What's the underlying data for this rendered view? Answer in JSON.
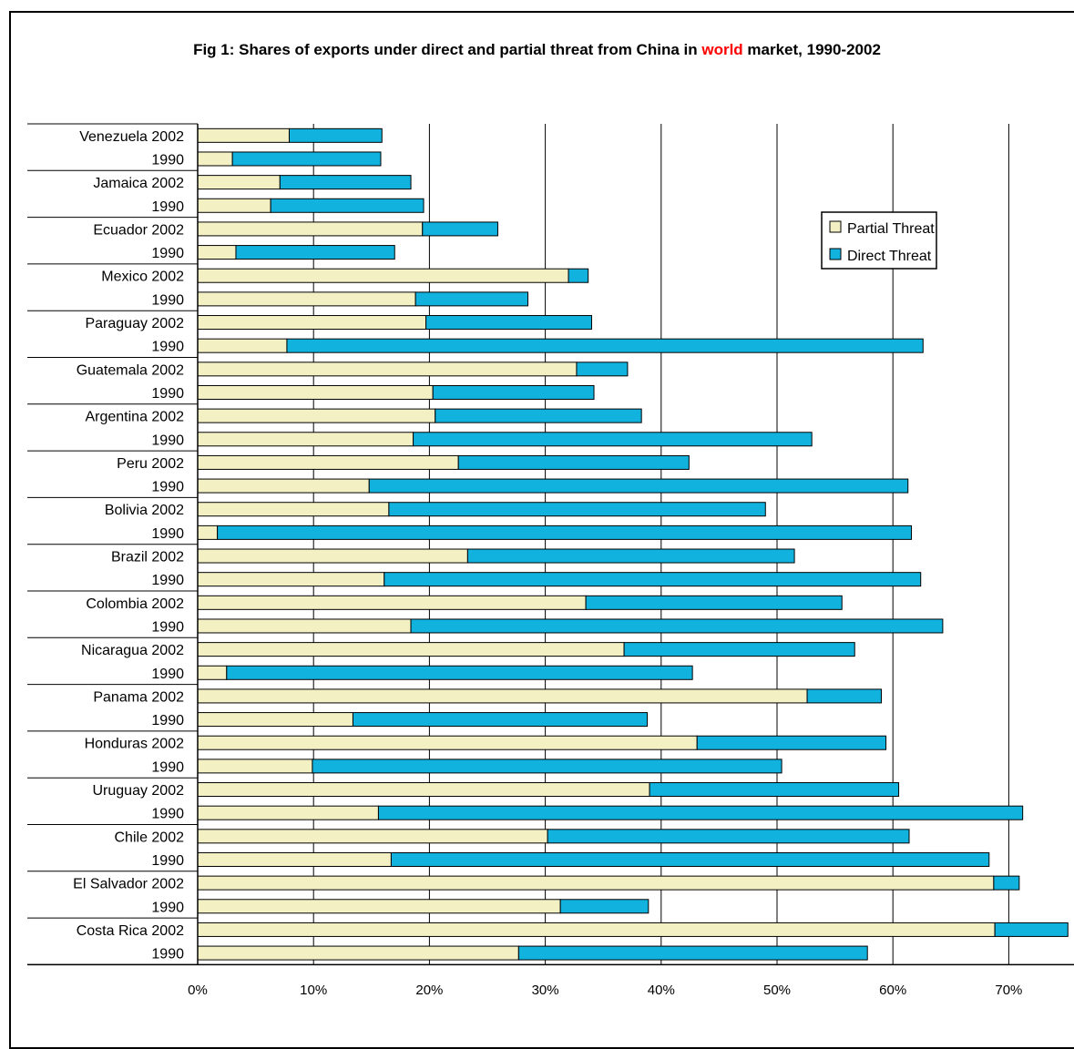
{
  "title": {
    "prefix": "Fig 1: Shares of exports under direct and partial threat from China in ",
    "highlight": "world",
    "suffix": " market, 1990-2002"
  },
  "colors": {
    "partial": "#f3f0c4",
    "direct": "#11b2de",
    "highlight": "#ff0000"
  },
  "chart_data": {
    "type": "bar",
    "orientation": "horizontal",
    "stacked": true,
    "title": "Fig 1: Shares of exports under direct and partial threat from China in world market, 1990-2002",
    "categories": [
      "Venezuela 2002",
      "1990",
      "Jamaica 2002",
      "1990",
      "Ecuador 2002",
      "1990",
      "Mexico 2002",
      "1990",
      "Paraguay 2002",
      "1990",
      "Guatemala 2002",
      "1990",
      "Argentina 2002",
      "1990",
      "Peru 2002",
      "1990",
      "Bolivia 2002",
      "1990",
      "Brazil 2002",
      "1990",
      "Colombia 2002",
      "1990",
      "Nicaragua 2002",
      "1990",
      "Panama 2002",
      "1990",
      "Honduras 2002",
      "1990",
      "Uruguay 2002",
      "1990",
      "Chile 2002",
      "1990",
      "El Salvador 2002",
      "1990",
      "Costa Rica 2002",
      "1990"
    ],
    "series": [
      {
        "name": "Partial Threat",
        "values": [
          7.9,
          3.0,
          7.1,
          6.3,
          19.4,
          3.3,
          32.0,
          18.8,
          19.7,
          7.7,
          32.7,
          20.3,
          20.5,
          18.6,
          22.5,
          14.8,
          16.5,
          1.7,
          23.3,
          16.1,
          33.5,
          18.4,
          36.8,
          2.5,
          52.6,
          13.4,
          43.1,
          9.9,
          39.0,
          15.6,
          30.2,
          16.7,
          68.7,
          31.3,
          68.8,
          27.7
        ]
      },
      {
        "name": "Direct Threat",
        "values": [
          8.0,
          12.8,
          11.3,
          13.2,
          6.5,
          13.7,
          1.7,
          9.7,
          14.3,
          54.9,
          4.4,
          13.9,
          17.8,
          34.4,
          19.9,
          46.5,
          32.5,
          59.9,
          28.2,
          46.3,
          22.1,
          45.9,
          19.9,
          40.2,
          6.4,
          25.4,
          16.3,
          40.5,
          21.5,
          55.6,
          31.2,
          51.6,
          2.2,
          7.6,
          6.3,
          30.1
        ]
      }
    ],
    "xlim": [
      0,
      75
    ],
    "xticks": [
      "0%",
      "10%",
      "20%",
      "30%",
      "40%",
      "50%",
      "60%",
      "70%"
    ],
    "grid": "vertical",
    "legend_position": "top-right"
  }
}
